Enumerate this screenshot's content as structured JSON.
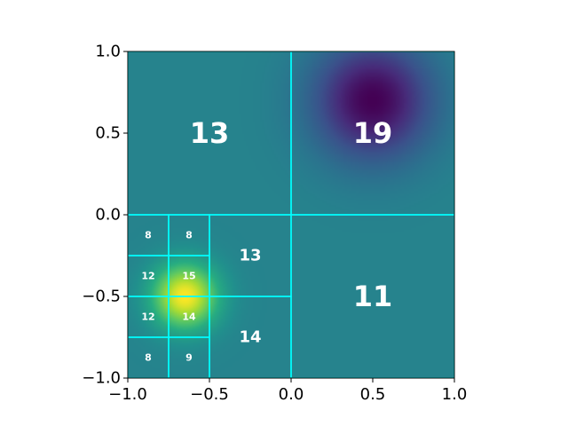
{
  "chart_data": {
    "type": "heatmap",
    "title": "",
    "xlabel": "",
    "ylabel": "",
    "xlim": [
      -1.0,
      1.0
    ],
    "ylim": [
      -1.0,
      1.0
    ],
    "grid": false,
    "colormap": "viridis",
    "field": {
      "background": 0.45,
      "peaks": [
        {
          "name": "yellow-peak",
          "x": -0.65,
          "y": -0.5,
          "sigma": 0.14,
          "amplitude": 0.55
        },
        {
          "name": "purple-peak",
          "x": 0.5,
          "y": 0.7,
          "sigma": 0.25,
          "amplitude": -0.45
        }
      ]
    },
    "grid_line_color": "#00ffff",
    "xticks": [
      {
        "value": -1.0,
        "label": "−1.0"
      },
      {
        "value": -0.5,
        "label": "−0.5"
      },
      {
        "value": 0.0,
        "label": "0.0"
      },
      {
        "value": 0.5,
        "label": "0.5"
      },
      {
        "value": 1.0,
        "label": "1.0"
      }
    ],
    "yticks": [
      {
        "value": -1.0,
        "label": "−1.0"
      },
      {
        "value": -0.5,
        "label": "−0.5"
      },
      {
        "value": 0.0,
        "label": "0.0"
      },
      {
        "value": 0.5,
        "label": "0.5"
      },
      {
        "value": 1.0,
        "label": "1.0"
      }
    ],
    "cells": [
      {
        "x0": -1.0,
        "x1": 0.0,
        "y0": 0.0,
        "y1": 1.0,
        "label": "13"
      },
      {
        "x0": 0.0,
        "x1": 1.0,
        "y0": 0.0,
        "y1": 1.0,
        "label": "19"
      },
      {
        "x0": 0.0,
        "x1": 1.0,
        "y0": -1.0,
        "y1": 0.0,
        "label": "11"
      },
      {
        "x0": -0.5,
        "x1": 0.0,
        "y0": -0.5,
        "y1": 0.0,
        "label": "13"
      },
      {
        "x0": -0.5,
        "x1": 0.0,
        "y0": -1.0,
        "y1": -0.5,
        "label": "14"
      },
      {
        "x0": -1.0,
        "x1": -0.75,
        "y0": -0.25,
        "y1": 0.0,
        "label": "8"
      },
      {
        "x0": -0.75,
        "x1": -0.5,
        "y0": -0.25,
        "y1": 0.0,
        "label": "8"
      },
      {
        "x0": -1.0,
        "x1": -0.75,
        "y0": -0.5,
        "y1": -0.25,
        "label": "12"
      },
      {
        "x0": -0.75,
        "x1": -0.5,
        "y0": -0.5,
        "y1": -0.25,
        "label": "15"
      },
      {
        "x0": -1.0,
        "x1": -0.75,
        "y0": -0.75,
        "y1": -0.5,
        "label": "12"
      },
      {
        "x0": -0.75,
        "x1": -0.5,
        "y0": -0.75,
        "y1": -0.5,
        "label": "14"
      },
      {
        "x0": -1.0,
        "x1": -0.75,
        "y0": -1.0,
        "y1": -0.75,
        "label": "8"
      },
      {
        "x0": -0.75,
        "x1": -0.5,
        "y0": -1.0,
        "y1": -0.75,
        "label": "9"
      }
    ]
  }
}
